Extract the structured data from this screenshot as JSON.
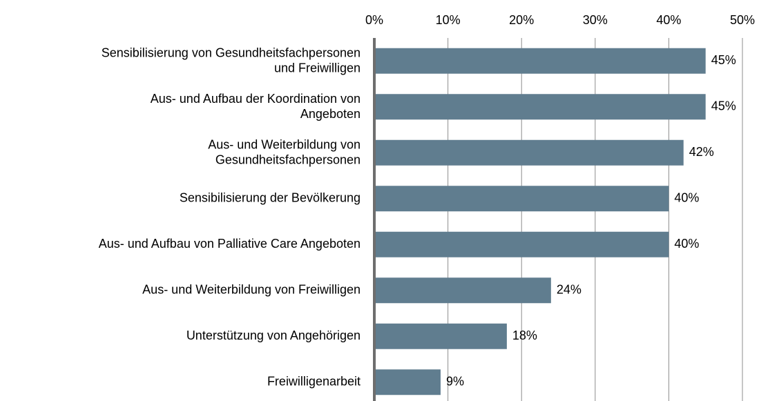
{
  "chart_data": {
    "type": "barh",
    "categories": [
      "Sensibilisierung von Gesundheitsfachpersonen\nund Freiwilligen",
      "Aus- und Aufbau der Koordination von\nAngeboten",
      "Aus- und Weiterbildung von\nGesundheitsfachpersonen",
      "Sensibilisierung der Bevölkerung",
      "Aus- und Aufbau von Palliative Care Angeboten",
      "Aus- und Weiterbildung von Freiwilligen",
      "Unterstützung von Angehörigen",
      "Freiwilligenarbeit"
    ],
    "values": [
      45,
      45,
      42,
      40,
      40,
      24,
      18,
      9
    ],
    "value_labels": [
      "45%",
      "45%",
      "42%",
      "40%",
      "40%",
      "24%",
      "18%",
      "9%"
    ],
    "color": "#607d8f",
    "xlim": [
      0,
      50
    ],
    "xticks": [
      {
        "value": 0,
        "label": "0%"
      },
      {
        "value": 10,
        "label": "10%"
      },
      {
        "value": 20,
        "label": "20%"
      },
      {
        "value": 30,
        "label": "30%"
      },
      {
        "value": 40,
        "label": "40%"
      },
      {
        "value": 50,
        "label": "50%"
      }
    ],
    "grid": true
  }
}
